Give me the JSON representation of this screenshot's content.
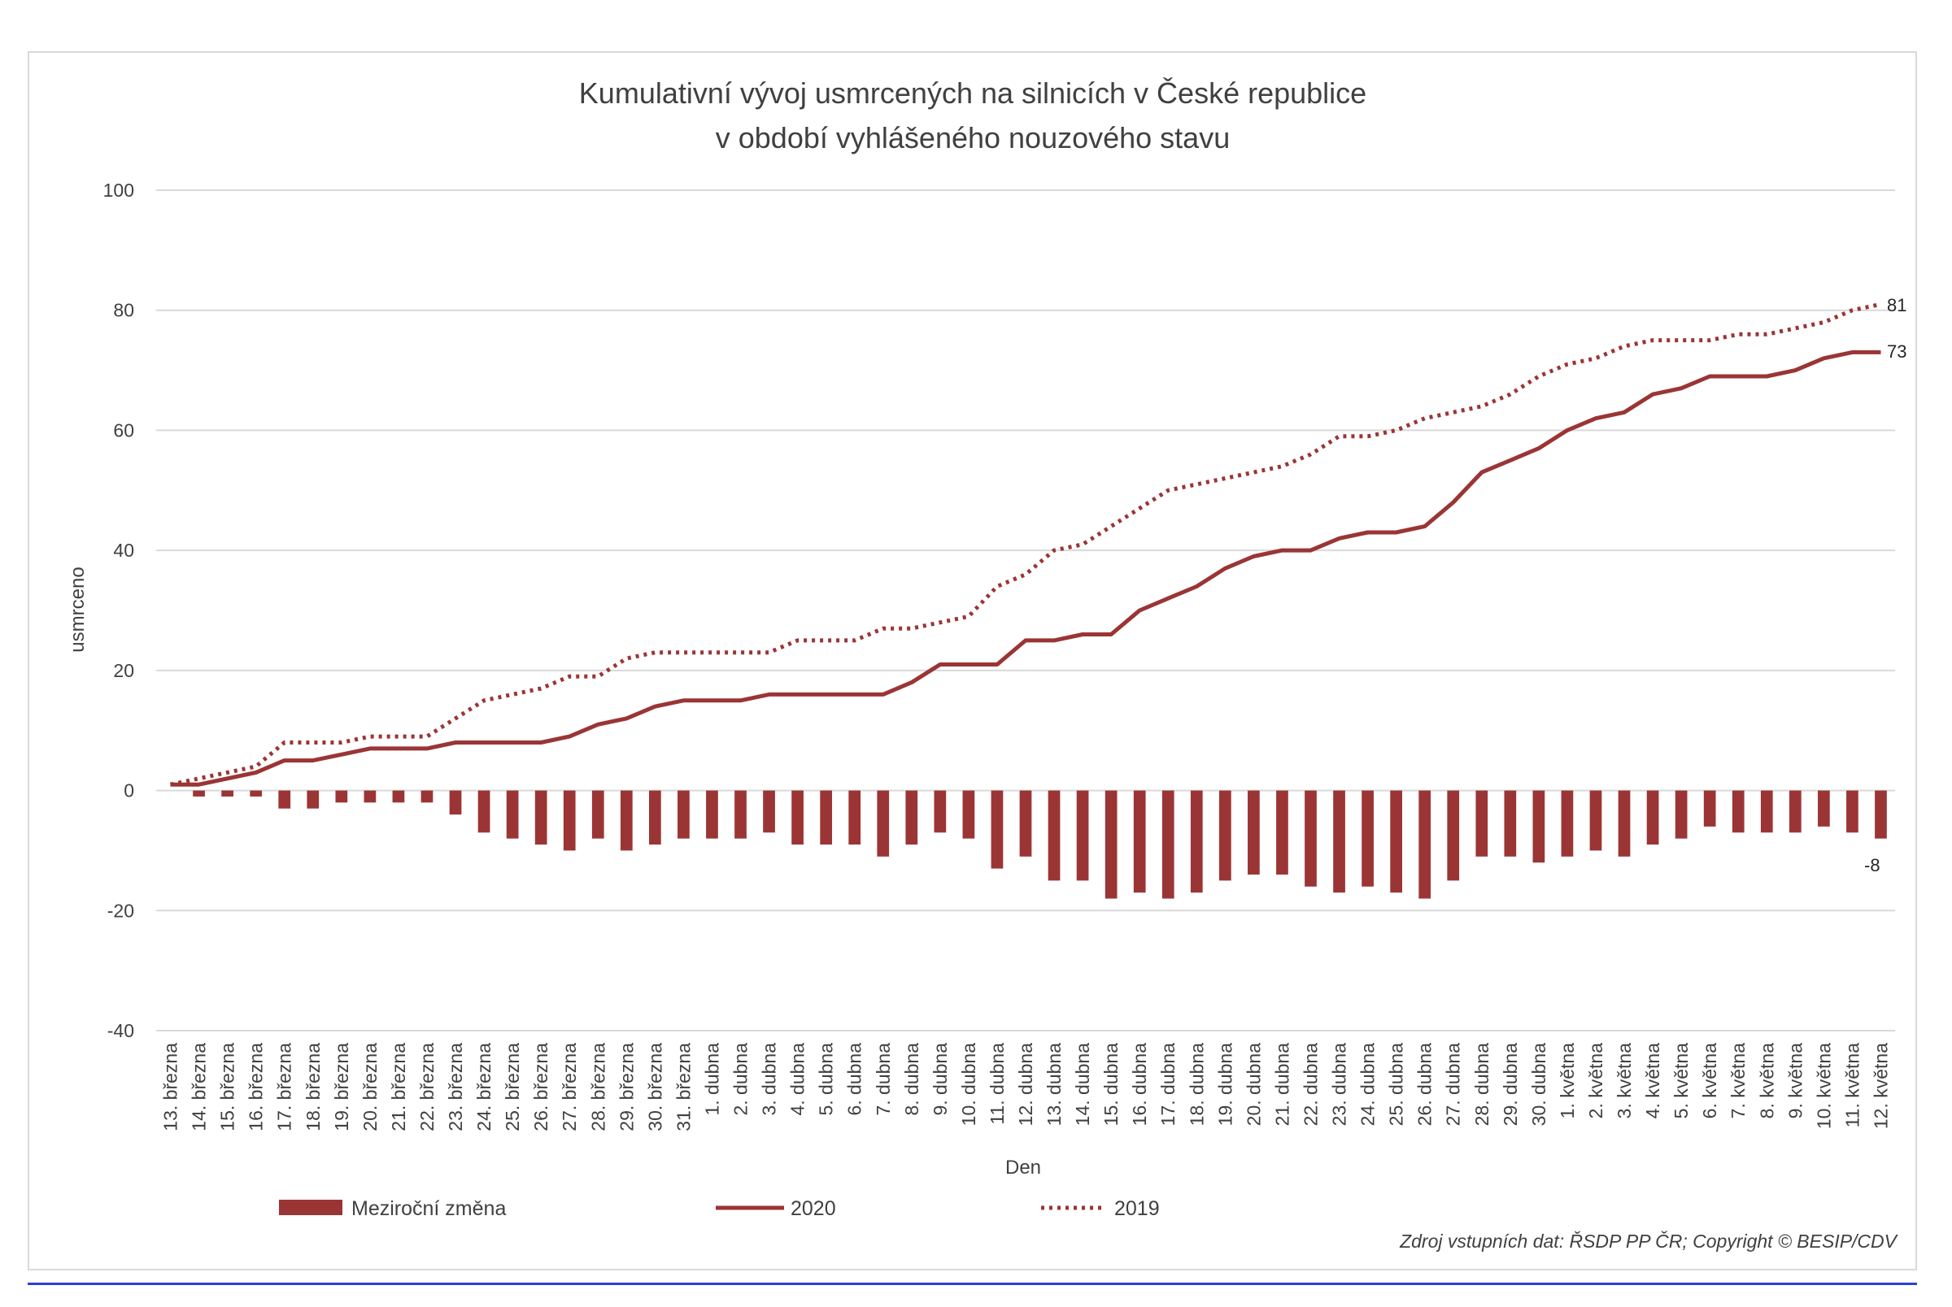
{
  "chart_data": {
    "type": "bar+line",
    "title_lines": [
      "Kumulativní vývoj usmrcených na silnicích v České republice",
      "v období vyhlášeného nouzového stavu"
    ],
    "xlabel": "Den",
    "ylabel": "usmrceno",
    "ylim": [
      -40,
      100
    ],
    "yticks": [
      -40,
      -20,
      0,
      20,
      40,
      60,
      80,
      100
    ],
    "grid": true,
    "legend_position": "bottom",
    "source_note": "Zdroj vstupních dat: ŘSDP PP ČR; Copyright © BESIP/CDV",
    "categories": [
      "13. března",
      "14. března",
      "15. března",
      "16. března",
      "17. března",
      "18. března",
      "19. března",
      "20. března",
      "21. března",
      "22. března",
      "23. března",
      "24. března",
      "25. března",
      "26. března",
      "27. března",
      "28. března",
      "29. března",
      "30. března",
      "31. března",
      "1. dubna",
      "2. dubna",
      "3. dubna",
      "4. dubna",
      "5. dubna",
      "6. dubna",
      "7. dubna",
      "8. dubna",
      "9. dubna",
      "10. dubna",
      "11. dubna",
      "12. dubna",
      "13. dubna",
      "14. dubna",
      "15. dubna",
      "16. dubna",
      "17. dubna",
      "18. dubna",
      "19. dubna",
      "20. dubna",
      "21. dubna",
      "22. dubna",
      "23. dubna",
      "24. dubna",
      "25. dubna",
      "26. dubna",
      "27. dubna",
      "28. dubna",
      "29. dubna",
      "30. dubna",
      "1. května",
      "2. května",
      "3. května",
      "4. května",
      "5. května",
      "6. května",
      "7. května",
      "8. května",
      "9. května",
      "10. května",
      "11. května",
      "12. května"
    ],
    "series": [
      {
        "name": "Meziroční změna",
        "type": "bar",
        "color": "#9b3535",
        "values": [
          0,
          -1,
          -1,
          -1,
          -3,
          -3,
          -2,
          -2,
          -2,
          -2,
          -4,
          -7,
          -8,
          -9,
          -10,
          -8,
          -10,
          -9,
          -8,
          -8,
          -8,
          -7,
          -9,
          -9,
          -9,
          -11,
          -9,
          -7,
          -8,
          -13,
          -11,
          -15,
          -15,
          -18,
          -17,
          -18,
          -17,
          -15,
          -14,
          -14,
          -16,
          -17,
          -16,
          -17,
          -18,
          -15,
          -11,
          -11,
          -12,
          -11,
          -10,
          -11,
          -9,
          -8,
          -6,
          -7,
          -7,
          -7,
          -6,
          -7,
          -8
        ]
      },
      {
        "name": "2020",
        "type": "line",
        "style": "solid",
        "color": "#9b3535",
        "values": [
          1,
          1,
          2,
          3,
          5,
          5,
          6,
          7,
          7,
          7,
          8,
          8,
          8,
          8,
          9,
          11,
          12,
          14,
          15,
          15,
          15,
          16,
          16,
          16,
          16,
          16,
          18,
          21,
          21,
          21,
          25,
          25,
          26,
          26,
          30,
          32,
          34,
          37,
          39,
          40,
          40,
          42,
          43,
          43,
          44,
          48,
          53,
          55,
          57,
          60,
          62,
          63,
          66,
          67,
          69,
          69,
          69,
          70,
          72,
          73,
          73
        ]
      },
      {
        "name": "2019",
        "type": "line",
        "style": "dotted",
        "color": "#9b3535",
        "values": [
          1,
          2,
          3,
          4,
          8,
          8,
          8,
          9,
          9,
          9,
          12,
          15,
          16,
          17,
          19,
          19,
          22,
          23,
          23,
          23,
          23,
          23,
          25,
          25,
          25,
          27,
          27,
          28,
          29,
          34,
          36,
          40,
          41,
          44,
          47,
          50,
          51,
          52,
          53,
          54,
          56,
          59,
          59,
          60,
          62,
          63,
          64,
          66,
          69,
          71,
          72,
          74,
          75,
          75,
          75,
          76,
          76,
          77,
          78,
          80,
          81
        ]
      }
    ],
    "end_labels": {
      "2019": "81",
      "2020": "73",
      "Meziroční změna": "-8"
    }
  }
}
